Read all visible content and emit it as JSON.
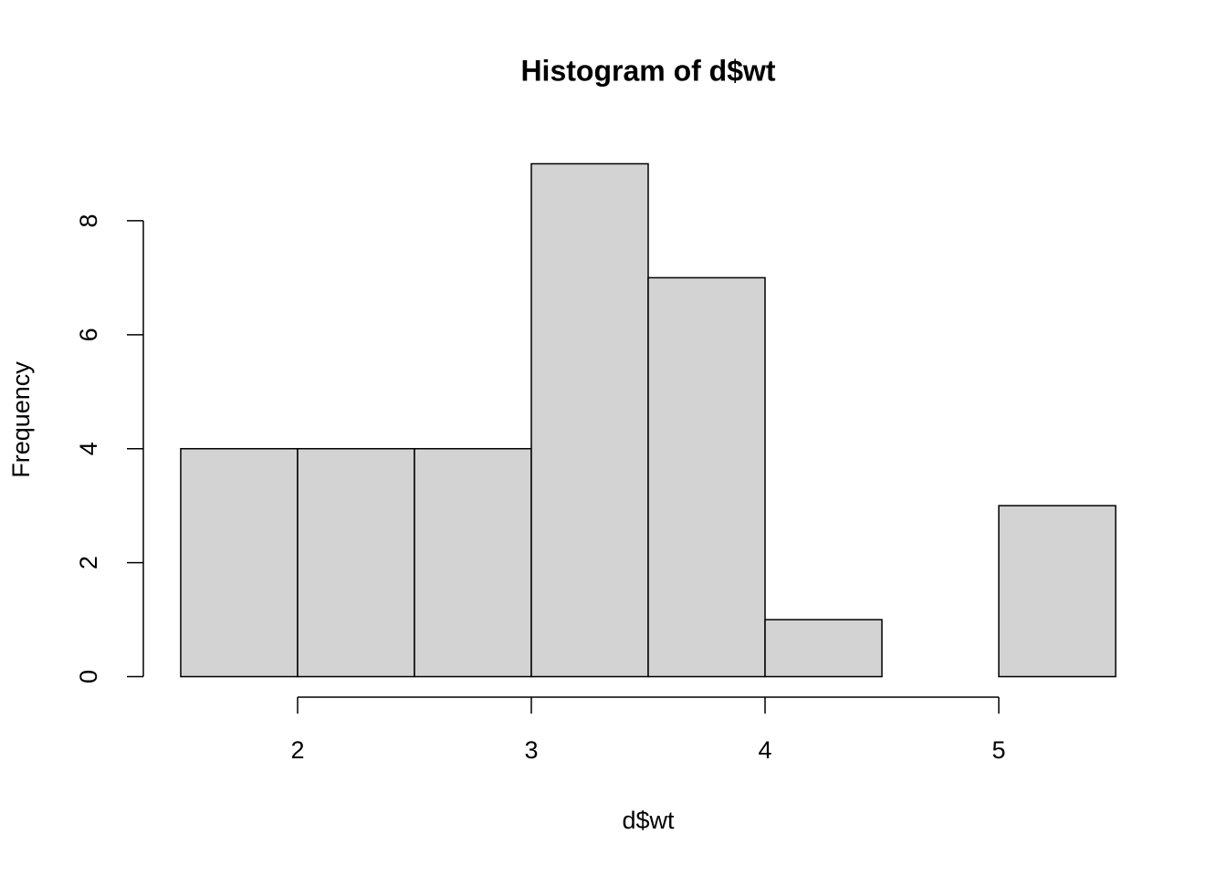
{
  "chart_data": {
    "type": "histogram",
    "title": "Histogram of d$wt",
    "x_label": "d$wt",
    "y_label": "Frequency",
    "bins": [
      1.5,
      2,
      2.5,
      3,
      3.5,
      4,
      4.5,
      5,
      5.5
    ],
    "values": [
      4,
      4,
      4,
      9,
      7,
      1,
      0,
      3
    ],
    "color": "#d3d3d3",
    "xlim": [
      1.34,
      5.66
    ],
    "ylim": [
      -0.36,
      9.36
    ],
    "xticks": [
      2,
      3,
      4,
      5
    ],
    "yticks": [
      0,
      2,
      4,
      6,
      8
    ],
    "grid": false
  }
}
